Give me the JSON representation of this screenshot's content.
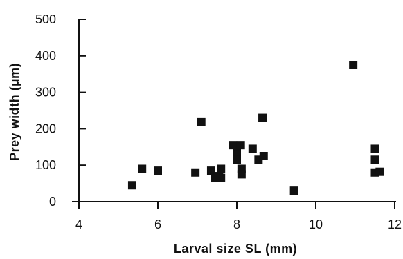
{
  "chart_data": {
    "type": "scatter",
    "xlabel": "Larval size SL  (mm)",
    "ylabel": "Prey width (µm)",
    "xlim": [
      4,
      12
    ],
    "ylim": [
      0,
      500
    ],
    "xticks": [
      "4",
      "6",
      "8",
      "10",
      "12"
    ],
    "yticks": [
      "0",
      "100",
      "200",
      "300",
      "400",
      "500"
    ],
    "grid": false,
    "marker": "square",
    "marker_color": "#111111",
    "series": [
      {
        "points": [
          {
            "x": 5.35,
            "y": 45
          },
          {
            "x": 5.6,
            "y": 90
          },
          {
            "x": 6.0,
            "y": 85
          },
          {
            "x": 6.95,
            "y": 80
          },
          {
            "x": 7.1,
            "y": 218
          },
          {
            "x": 7.35,
            "y": 85
          },
          {
            "x": 7.45,
            "y": 65
          },
          {
            "x": 7.55,
            "y": 70
          },
          {
            "x": 7.6,
            "y": 90
          },
          {
            "x": 7.6,
            "y": 65
          },
          {
            "x": 7.9,
            "y": 155
          },
          {
            "x": 8.0,
            "y": 150
          },
          {
            "x": 8.0,
            "y": 130
          },
          {
            "x": 8.0,
            "y": 115
          },
          {
            "x": 8.1,
            "y": 155
          },
          {
            "x": 8.12,
            "y": 90
          },
          {
            "x": 8.12,
            "y": 75
          },
          {
            "x": 8.4,
            "y": 145
          },
          {
            "x": 8.55,
            "y": 115
          },
          {
            "x": 8.65,
            "y": 230
          },
          {
            "x": 8.68,
            "y": 125
          },
          {
            "x": 9.45,
            "y": 30
          },
          {
            "x": 10.95,
            "y": 375
          },
          {
            "x": 11.5,
            "y": 145
          },
          {
            "x": 11.5,
            "y": 115
          },
          {
            "x": 11.5,
            "y": 80
          },
          {
            "x": 11.62,
            "y": 82
          }
        ]
      }
    ]
  }
}
